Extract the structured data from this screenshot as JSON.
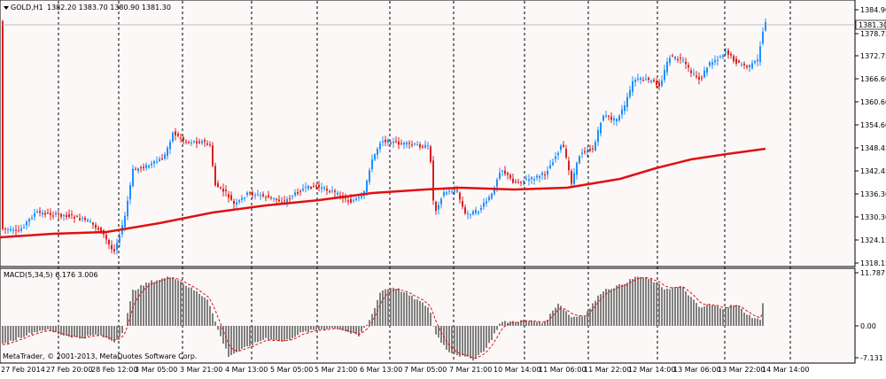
{
  "header": {
    "symbol": "GOLD,H1",
    "ohlc": "1382.20 1383.70 1380.90 1381.30",
    "menu_icon": "triangle-down-icon"
  },
  "price_axis": {
    "labels": [
      "1384.90",
      "1378.75",
      "1372.75",
      "1366.60",
      "1360.60",
      "1354.60",
      "1348.45",
      "1342.45",
      "1336.30",
      "1330.30",
      "1324.15",
      "1318.15"
    ],
    "current_price": "1381.30"
  },
  "macd": {
    "label": "MACD(5,34,5) 6.176 3.006",
    "axis_labels": [
      "11.787",
      "0.00",
      "-7.131"
    ]
  },
  "time_axis": {
    "labels": [
      "27 Feb 2014",
      "27 Feb 20:00",
      "28 Feb 12:00",
      "3 Mar 05:00",
      "3 Mar 21:00",
      "4 Mar 13:00",
      "5 Mar 05:00",
      "5 Mar 21:00",
      "6 Mar 13:00",
      "7 Mar 05:00",
      "7 Mar 21:00",
      "10 Mar 14:00",
      "11 Mar 06:00",
      "11 Mar 22:00",
      "12 Mar 14:00",
      "13 Mar 06:00",
      "13 Mar 22:00",
      "14 Mar 14:00"
    ]
  },
  "copyright": "MetaTrader, © 2001-2013, MetaQuotes Software Corp.",
  "colors": {
    "background": "#ffffff",
    "panel_bg": "#fdf8f8",
    "bull": "#1e90ff",
    "bear": "#dc1e1e",
    "ma": "#e01010",
    "hist": "#808080",
    "signal": "#e01010"
  }
}
